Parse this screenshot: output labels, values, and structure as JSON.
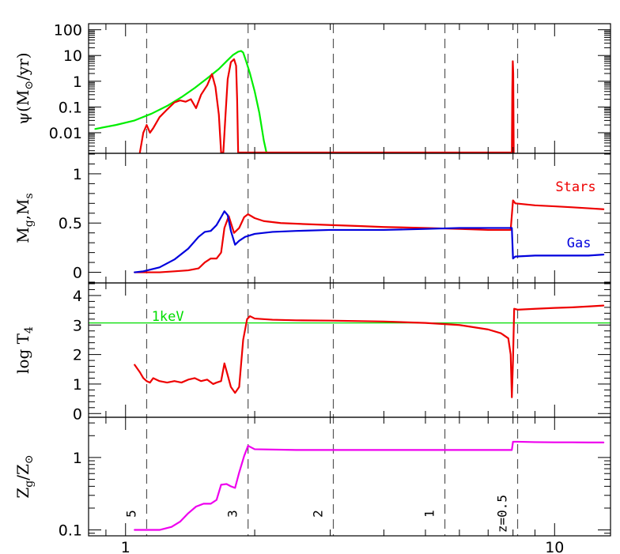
{
  "chart_data": {
    "type": "line",
    "x_axis": {
      "scale": "log",
      "range": [
        0.82,
        13.5
      ],
      "major_ticks": [
        1,
        10
      ],
      "tick_labels": [
        "1",
        "10"
      ]
    },
    "redshift_markers": [
      {
        "x": 1.12,
        "label": "5"
      },
      {
        "x": 1.93,
        "label": "3"
      },
      {
        "x": 3.05,
        "label": "2"
      },
      {
        "x": 5.55,
        "label": "1"
      },
      {
        "x": 8.2,
        "label": "z=0.5"
      }
    ],
    "panels": [
      {
        "id": "sfr",
        "ylabel": "ψ(M⊙/yr)",
        "yscale": "log",
        "ylim": [
          0.0017,
          160
        ],
        "tick_labels": [
          {
            "value": 100,
            "label": "100"
          },
          {
            "value": 10,
            "label": "10"
          },
          {
            "value": 1,
            "label": "1"
          },
          {
            "value": 0.1,
            "label": "0.1"
          },
          {
            "value": 0.01,
            "label": "0.01"
          }
        ],
        "series": [
          {
            "color": "#00ee00",
            "points": [
              [
                0.85,
                0.014
              ],
              [
                0.95,
                0.02
              ],
              [
                1.05,
                0.03
              ],
              [
                1.15,
                0.055
              ],
              [
                1.25,
                0.11
              ],
              [
                1.35,
                0.24
              ],
              [
                1.45,
                0.55
              ],
              [
                1.55,
                1.3
              ],
              [
                1.65,
                3.0
              ],
              [
                1.72,
                6.0
              ],
              [
                1.78,
                10.5
              ],
              [
                1.83,
                14
              ],
              [
                1.86,
                15
              ],
              [
                1.88,
                13
              ],
              [
                1.91,
                6
              ],
              [
                1.95,
                2
              ],
              [
                2.0,
                0.4
              ],
              [
                2.05,
                0.06
              ],
              [
                2.1,
                0.005
              ],
              [
                2.13,
                0.0017
              ]
            ]
          },
          {
            "color": "#ee0000",
            "points": [
              [
                1.08,
                0.0017
              ],
              [
                1.1,
                0.01
              ],
              [
                1.12,
                0.02
              ],
              [
                1.14,
                0.01
              ],
              [
                1.16,
                0.015
              ],
              [
                1.2,
                0.04
              ],
              [
                1.25,
                0.08
              ],
              [
                1.3,
                0.15
              ],
              [
                1.34,
                0.18
              ],
              [
                1.38,
                0.16
              ],
              [
                1.42,
                0.2
              ],
              [
                1.46,
                0.09
              ],
              [
                1.5,
                0.3
              ],
              [
                1.55,
                0.7
              ],
              [
                1.59,
                1.9
              ],
              [
                1.62,
                0.6
              ],
              [
                1.65,
                0.05
              ],
              [
                1.67,
                0.0017
              ],
              [
                1.69,
                0.0017
              ],
              [
                1.71,
                0.05
              ],
              [
                1.73,
                1.2
              ],
              [
                1.76,
                5.5
              ],
              [
                1.79,
                7.2
              ],
              [
                1.81,
                4
              ],
              [
                1.82,
                0.2
              ],
              [
                1.83,
                0.0017
              ],
              [
                7.95,
                0.0017
              ],
              [
                7.97,
                0.5
              ],
              [
                7.99,
                6.0
              ],
              [
                8.01,
                2
              ],
              [
                8.03,
                0.0017
              ]
            ]
          }
        ]
      },
      {
        "id": "mass",
        "ylabel": "Mg,Ms",
        "yscale": "linear",
        "ylim": [
          -0.1,
          1.2
        ],
        "tick_labels": [
          {
            "value": 0,
            "label": "0"
          },
          {
            "value": 0.5,
            "label": "0.5"
          },
          {
            "value": 1,
            "label": "1"
          }
        ],
        "annotations": [
          {
            "text": "Stars",
            "color": "#ee0000",
            "x": 11.2,
            "y": 0.87
          },
          {
            "text": "Gas",
            "color": "#0000dd",
            "x": 11.4,
            "y": 0.3
          }
        ],
        "series": [
          {
            "name": "Stars",
            "color": "#ee0000",
            "points": [
              [
                1.05,
                0.0
              ],
              [
                1.1,
                0.0
              ],
              [
                1.2,
                0.0
              ],
              [
                1.3,
                0.01
              ],
              [
                1.4,
                0.02
              ],
              [
                1.48,
                0.04
              ],
              [
                1.53,
                0.1
              ],
              [
                1.58,
                0.14
              ],
              [
                1.63,
                0.14
              ],
              [
                1.67,
                0.2
              ],
              [
                1.7,
                0.45
              ],
              [
                1.74,
                0.57
              ],
              [
                1.79,
                0.4
              ],
              [
                1.84,
                0.45
              ],
              [
                1.89,
                0.56
              ],
              [
                1.93,
                0.59
              ],
              [
                2.0,
                0.55
              ],
              [
                2.1,
                0.52
              ],
              [
                2.3,
                0.5
              ],
              [
                2.6,
                0.49
              ],
              [
                3.0,
                0.48
              ],
              [
                3.5,
                0.47
              ],
              [
                4.0,
                0.46
              ],
              [
                5.0,
                0.45
              ],
              [
                6.0,
                0.44
              ],
              [
                7.0,
                0.43
              ],
              [
                7.8,
                0.43
              ],
              [
                7.9,
                0.43
              ],
              [
                8.0,
                0.73
              ],
              [
                8.1,
                0.7
              ],
              [
                9.0,
                0.68
              ],
              [
                10.0,
                0.67
              ],
              [
                11.0,
                0.66
              ],
              [
                12.0,
                0.65
              ],
              [
                13.0,
                0.64
              ]
            ]
          },
          {
            "name": "Gas",
            "color": "#0000dd",
            "points": [
              [
                1.05,
                0.0
              ],
              [
                1.1,
                0.01
              ],
              [
                1.2,
                0.05
              ],
              [
                1.3,
                0.13
              ],
              [
                1.4,
                0.24
              ],
              [
                1.48,
                0.36
              ],
              [
                1.53,
                0.41
              ],
              [
                1.58,
                0.42
              ],
              [
                1.63,
                0.48
              ],
              [
                1.67,
                0.56
              ],
              [
                1.7,
                0.62
              ],
              [
                1.73,
                0.58
              ],
              [
                1.76,
                0.42
              ],
              [
                1.8,
                0.28
              ],
              [
                1.84,
                0.32
              ],
              [
                1.9,
                0.36
              ],
              [
                2.0,
                0.39
              ],
              [
                2.2,
                0.41
              ],
              [
                2.5,
                0.42
              ],
              [
                3.0,
                0.43
              ],
              [
                4.0,
                0.43
              ],
              [
                5.0,
                0.44
              ],
              [
                6.0,
                0.45
              ],
              [
                7.0,
                0.45
              ],
              [
                7.85,
                0.45
              ],
              [
                7.95,
                0.45
              ],
              [
                8.0,
                0.14
              ],
              [
                8.1,
                0.16
              ],
              [
                9.0,
                0.17
              ],
              [
                10.0,
                0.17
              ],
              [
                11.0,
                0.17
              ],
              [
                12.0,
                0.17
              ],
              [
                13.0,
                0.18
              ]
            ]
          }
        ]
      },
      {
        "id": "temp",
        "ylabel": "log T4",
        "yscale": "linear",
        "ylim": [
          -0.1,
          4.4
        ],
        "tick_labels": [
          {
            "value": 0,
            "label": "0"
          },
          {
            "value": 1,
            "label": "1"
          },
          {
            "value": 2,
            "label": "2"
          },
          {
            "value": 3,
            "label": "3"
          },
          {
            "value": 4,
            "label": "4"
          }
        ],
        "reference_line": {
          "y": 3.07,
          "color": "#00dd00",
          "label": "1keV",
          "label_x": 1.15,
          "label_y": 3.3
        },
        "series": [
          {
            "color": "#ee0000",
            "points": [
              [
                1.05,
                1.65
              ],
              [
                1.08,
                1.4
              ],
              [
                1.1,
                1.2
              ],
              [
                1.12,
                1.1
              ],
              [
                1.14,
                1.05
              ],
              [
                1.16,
                1.2
              ],
              [
                1.2,
                1.1
              ],
              [
                1.25,
                1.05
              ],
              [
                1.3,
                1.1
              ],
              [
                1.35,
                1.05
              ],
              [
                1.4,
                1.15
              ],
              [
                1.45,
                1.2
              ],
              [
                1.5,
                1.1
              ],
              [
                1.55,
                1.15
              ],
              [
                1.6,
                1.0
              ],
              [
                1.63,
                1.05
              ],
              [
                1.67,
                1.1
              ],
              [
                1.7,
                1.7
              ],
              [
                1.73,
                1.3
              ],
              [
                1.76,
                0.9
              ],
              [
                1.8,
                0.7
              ],
              [
                1.84,
                0.9
              ],
              [
                1.88,
                2.5
              ],
              [
                1.92,
                3.2
              ],
              [
                1.95,
                3.3
              ],
              [
                2.0,
                3.22
              ],
              [
                2.2,
                3.18
              ],
              [
                2.5,
                3.16
              ],
              [
                3.0,
                3.15
              ],
              [
                4.0,
                3.12
              ],
              [
                5.0,
                3.07
              ],
              [
                6.0,
                3.0
              ],
              [
                7.0,
                2.85
              ],
              [
                7.5,
                2.72
              ],
              [
                7.8,
                2.55
              ],
              [
                7.9,
                2.0
              ],
              [
                7.95,
                0.55
              ],
              [
                8.0,
                1.8
              ],
              [
                8.05,
                3.55
              ],
              [
                8.2,
                3.52
              ],
              [
                9.0,
                3.55
              ],
              [
                10.0,
                3.58
              ],
              [
                11.0,
                3.6
              ],
              [
                12.0,
                3.63
              ],
              [
                13.0,
                3.66
              ]
            ]
          }
        ]
      },
      {
        "id": "metal",
        "ylabel": "Zg/Z⊙",
        "yscale": "log",
        "ylim": [
          0.085,
          3.5
        ],
        "tick_labels": [
          {
            "value": 1,
            "label": "1"
          },
          {
            "value": 0.1,
            "label": "0.1"
          }
        ],
        "series": [
          {
            "color": "#ee00ee",
            "points": [
              [
                1.05,
                0.1
              ],
              [
                1.1,
                0.1
              ],
              [
                1.2,
                0.1
              ],
              [
                1.28,
                0.11
              ],
              [
                1.34,
                0.13
              ],
              [
                1.4,
                0.17
              ],
              [
                1.46,
                0.21
              ],
              [
                1.52,
                0.23
              ],
              [
                1.58,
                0.23
              ],
              [
                1.63,
                0.26
              ],
              [
                1.67,
                0.42
              ],
              [
                1.72,
                0.43
              ],
              [
                1.76,
                0.4
              ],
              [
                1.8,
                0.38
              ],
              [
                1.84,
                0.62
              ],
              [
                1.89,
                1.05
              ],
              [
                1.93,
                1.45
              ],
              [
                2.0,
                1.3
              ],
              [
                2.5,
                1.27
              ],
              [
                3.0,
                1.27
              ],
              [
                4.0,
                1.27
              ],
              [
                5.0,
                1.27
              ],
              [
                6.0,
                1.27
              ],
              [
                7.0,
                1.27
              ],
              [
                7.9,
                1.27
              ],
              [
                7.95,
                1.27
              ],
              [
                8.0,
                1.65
              ],
              [
                8.2,
                1.65
              ],
              [
                9.0,
                1.63
              ],
              [
                10.0,
                1.62
              ],
              [
                11.0,
                1.62
              ],
              [
                12.0,
                1.61
              ],
              [
                13.0,
                1.61
              ]
            ]
          }
        ]
      }
    ]
  }
}
